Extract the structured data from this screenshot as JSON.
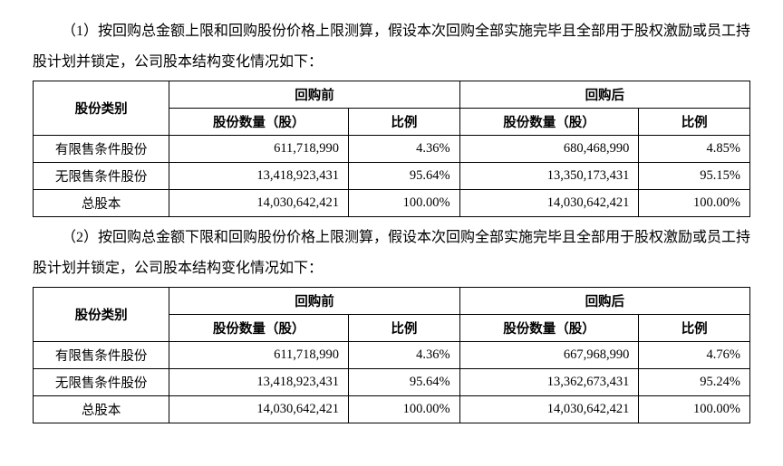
{
  "para1": "（1）按回购总金额上限和回购股份价格上限测算，假设本次回购全部实施完毕且全部用于股权激励或员工持股计划并锁定，公司股本结构变化情况如下：",
  "para2": "（2）按回购总金额下限和回购股份价格上限测算，假设本次回购全部实施完毕且全部用于股权激励或员工持股计划并锁定，公司股本结构变化情况如下：",
  "headers": {
    "category": "股份类别",
    "before": "回购前",
    "after": "回购后",
    "qty": "股份数量（股）",
    "pct": "比例"
  },
  "rowLabels": {
    "restricted": "有限售条件股份",
    "unrestricted": "无限售条件股份",
    "total": "总股本"
  },
  "table1": {
    "rows": [
      {
        "label": "restricted",
        "beforeQty": "611,718,990",
        "beforePct": "4.36%",
        "afterQty": "680,468,990",
        "afterPct": "4.85%"
      },
      {
        "label": "unrestricted",
        "beforeQty": "13,418,923,431",
        "beforePct": "95.64%",
        "afterQty": "13,350,173,431",
        "afterPct": "95.15%"
      },
      {
        "label": "total",
        "beforeQty": "14,030,642,421",
        "beforePct": "100.00%",
        "afterQty": "14,030,642,421",
        "afterPct": "100.00%"
      }
    ]
  },
  "table2": {
    "rows": [
      {
        "label": "restricted",
        "beforeQty": "611,718,990",
        "beforePct": "4.36%",
        "afterQty": "667,968,990",
        "afterPct": "4.76%"
      },
      {
        "label": "unrestricted",
        "beforeQty": "13,418,923,431",
        "beforePct": "95.64%",
        "afterQty": "13,362,673,431",
        "afterPct": "95.24%"
      },
      {
        "label": "total",
        "beforeQty": "14,030,642,421",
        "beforePct": "100.00%",
        "afterQty": "14,030,642,421",
        "afterPct": "100.00%"
      }
    ]
  },
  "styling": {
    "background_color": "#ffffff",
    "text_color": "#000000",
    "border_color": "#000000",
    "font_family": "SimSun",
    "para_fontsize": 16,
    "cell_fontsize": 14.5,
    "para_line_height": 2.15,
    "col_widths_pct": [
      19,
      25,
      15.5,
      25,
      15.5
    ]
  }
}
